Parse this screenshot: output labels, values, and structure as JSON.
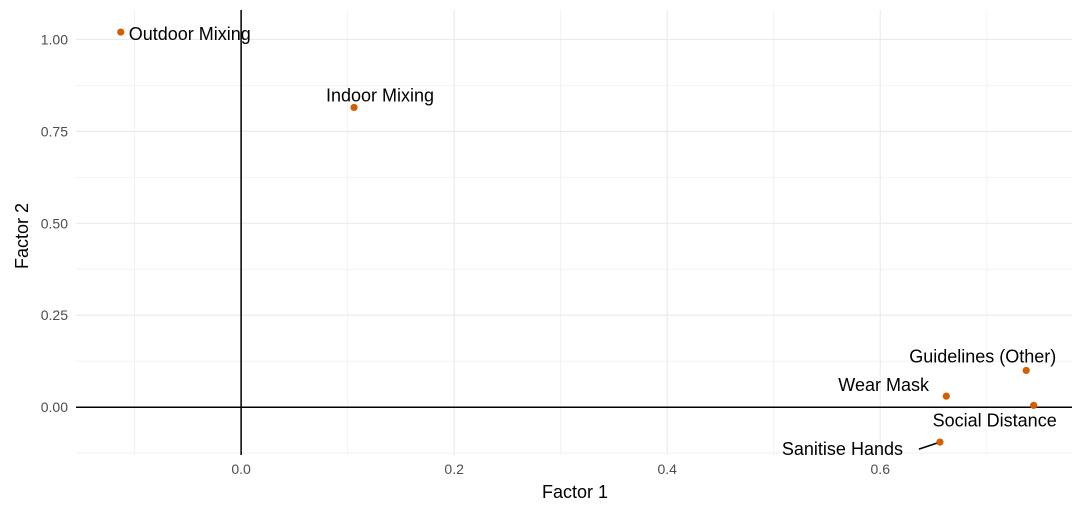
{
  "chart_data": {
    "type": "scatter",
    "xlabel": "Factor 1",
    "ylabel": "Factor 2",
    "xlim": [
      -0.155,
      0.78
    ],
    "ylim": [
      -0.13,
      1.08
    ],
    "x_ticks": [
      0.0,
      0.2,
      0.4,
      0.6
    ],
    "x_tick_labels": [
      "0.0",
      "0.2",
      "0.4",
      "0.6"
    ],
    "y_ticks": [
      0.0,
      0.25,
      0.5,
      0.75,
      1.0
    ],
    "y_tick_labels": [
      "0.00",
      "0.25",
      "0.50",
      "0.75",
      "1.00"
    ],
    "grid": true,
    "reference_lines": {
      "x": 0,
      "y": 0
    },
    "point_color": "#D55E00",
    "points": [
      {
        "label": "Outdoor Mixing",
        "x": -0.113,
        "y": 1.02
      },
      {
        "label": "Indoor Mixing",
        "x": 0.106,
        "y": 0.815
      },
      {
        "label": "Guidelines (Other)",
        "x": 0.737,
        "y": 0.1
      },
      {
        "label": "Wear Mask",
        "x": 0.662,
        "y": 0.03
      },
      {
        "label": "Social Distance",
        "x": 0.744,
        "y": 0.005
      },
      {
        "label": "Sanitise Hands",
        "x": 0.656,
        "y": -0.095
      }
    ]
  }
}
